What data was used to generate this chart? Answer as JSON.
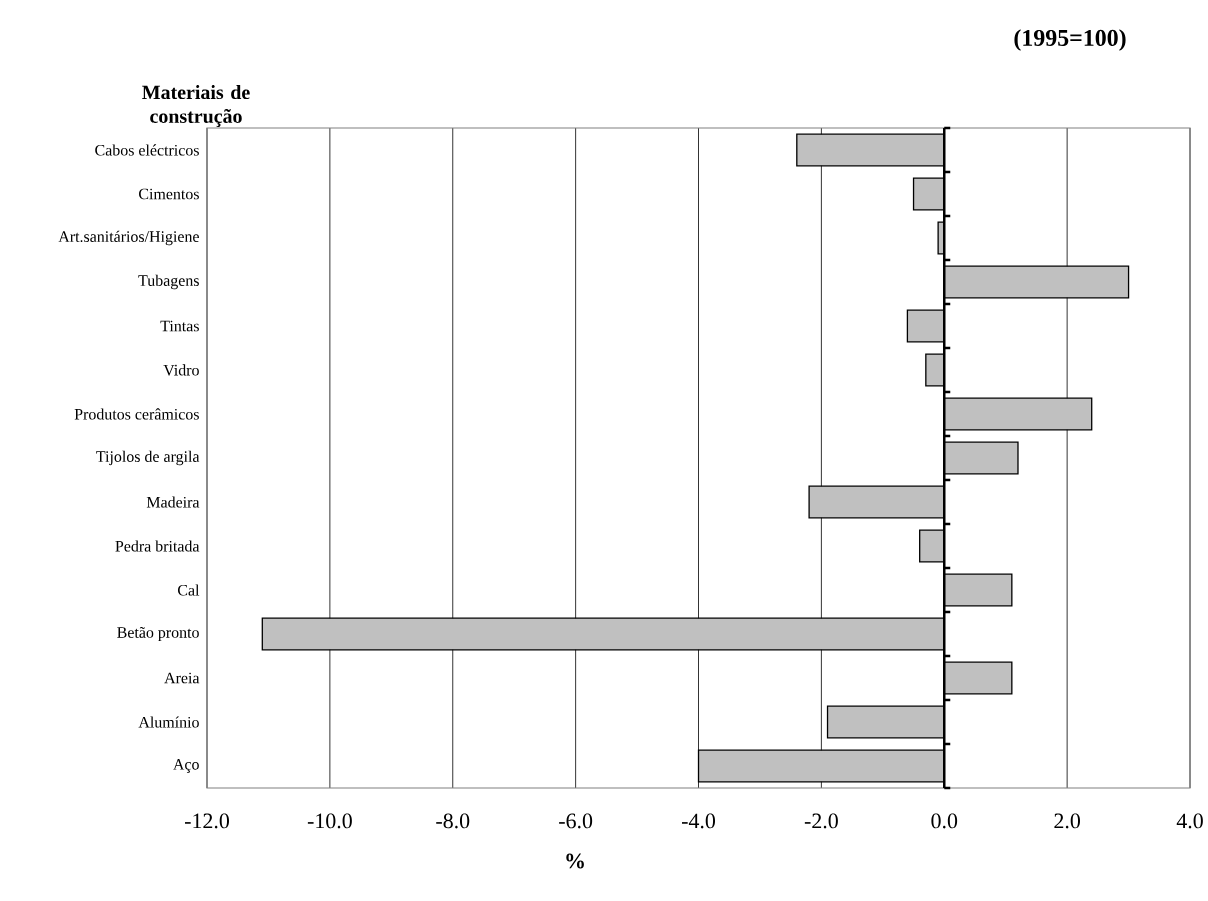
{
  "chart_data": {
    "type": "bar",
    "orientation": "horizontal",
    "title": "(1995=100)",
    "ylabel": "Materiais de construção",
    "xlabel": "%",
    "categories": [
      "Cabos eléctricos",
      "Cimentos",
      "Art.sanitários/Higiene",
      "Tubagens",
      "Tintas",
      "Vidro",
      "Produtos cerâmicos",
      "Tijolos de argila",
      "Madeira",
      "Pedra britada",
      "Cal",
      "Betão pronto",
      "Areia",
      "Alumínio",
      "Aço"
    ],
    "values": [
      -2.4,
      -0.5,
      -0.1,
      3.0,
      -0.6,
      -0.3,
      2.4,
      1.2,
      -2.2,
      -0.4,
      1.1,
      -11.1,
      1.1,
      -1.9,
      -4.0
    ],
    "color": "#c0c0c0",
    "xlim": [
      -12,
      4
    ],
    "xticks": [
      {
        "value": -12,
        "label": "-12.0"
      },
      {
        "value": -10,
        "label": "-10.0"
      },
      {
        "value": -8,
        "label": "-8.0"
      },
      {
        "value": -6,
        "label": "-6.0"
      },
      {
        "value": -4,
        "label": "-4.0"
      },
      {
        "value": -2,
        "label": "-2.0"
      },
      {
        "value": 0,
        "label": "0.0"
      },
      {
        "value": 2,
        "label": "2.0"
      },
      {
        "value": 4,
        "label": "4.0"
      }
    ],
    "grid": "x"
  }
}
